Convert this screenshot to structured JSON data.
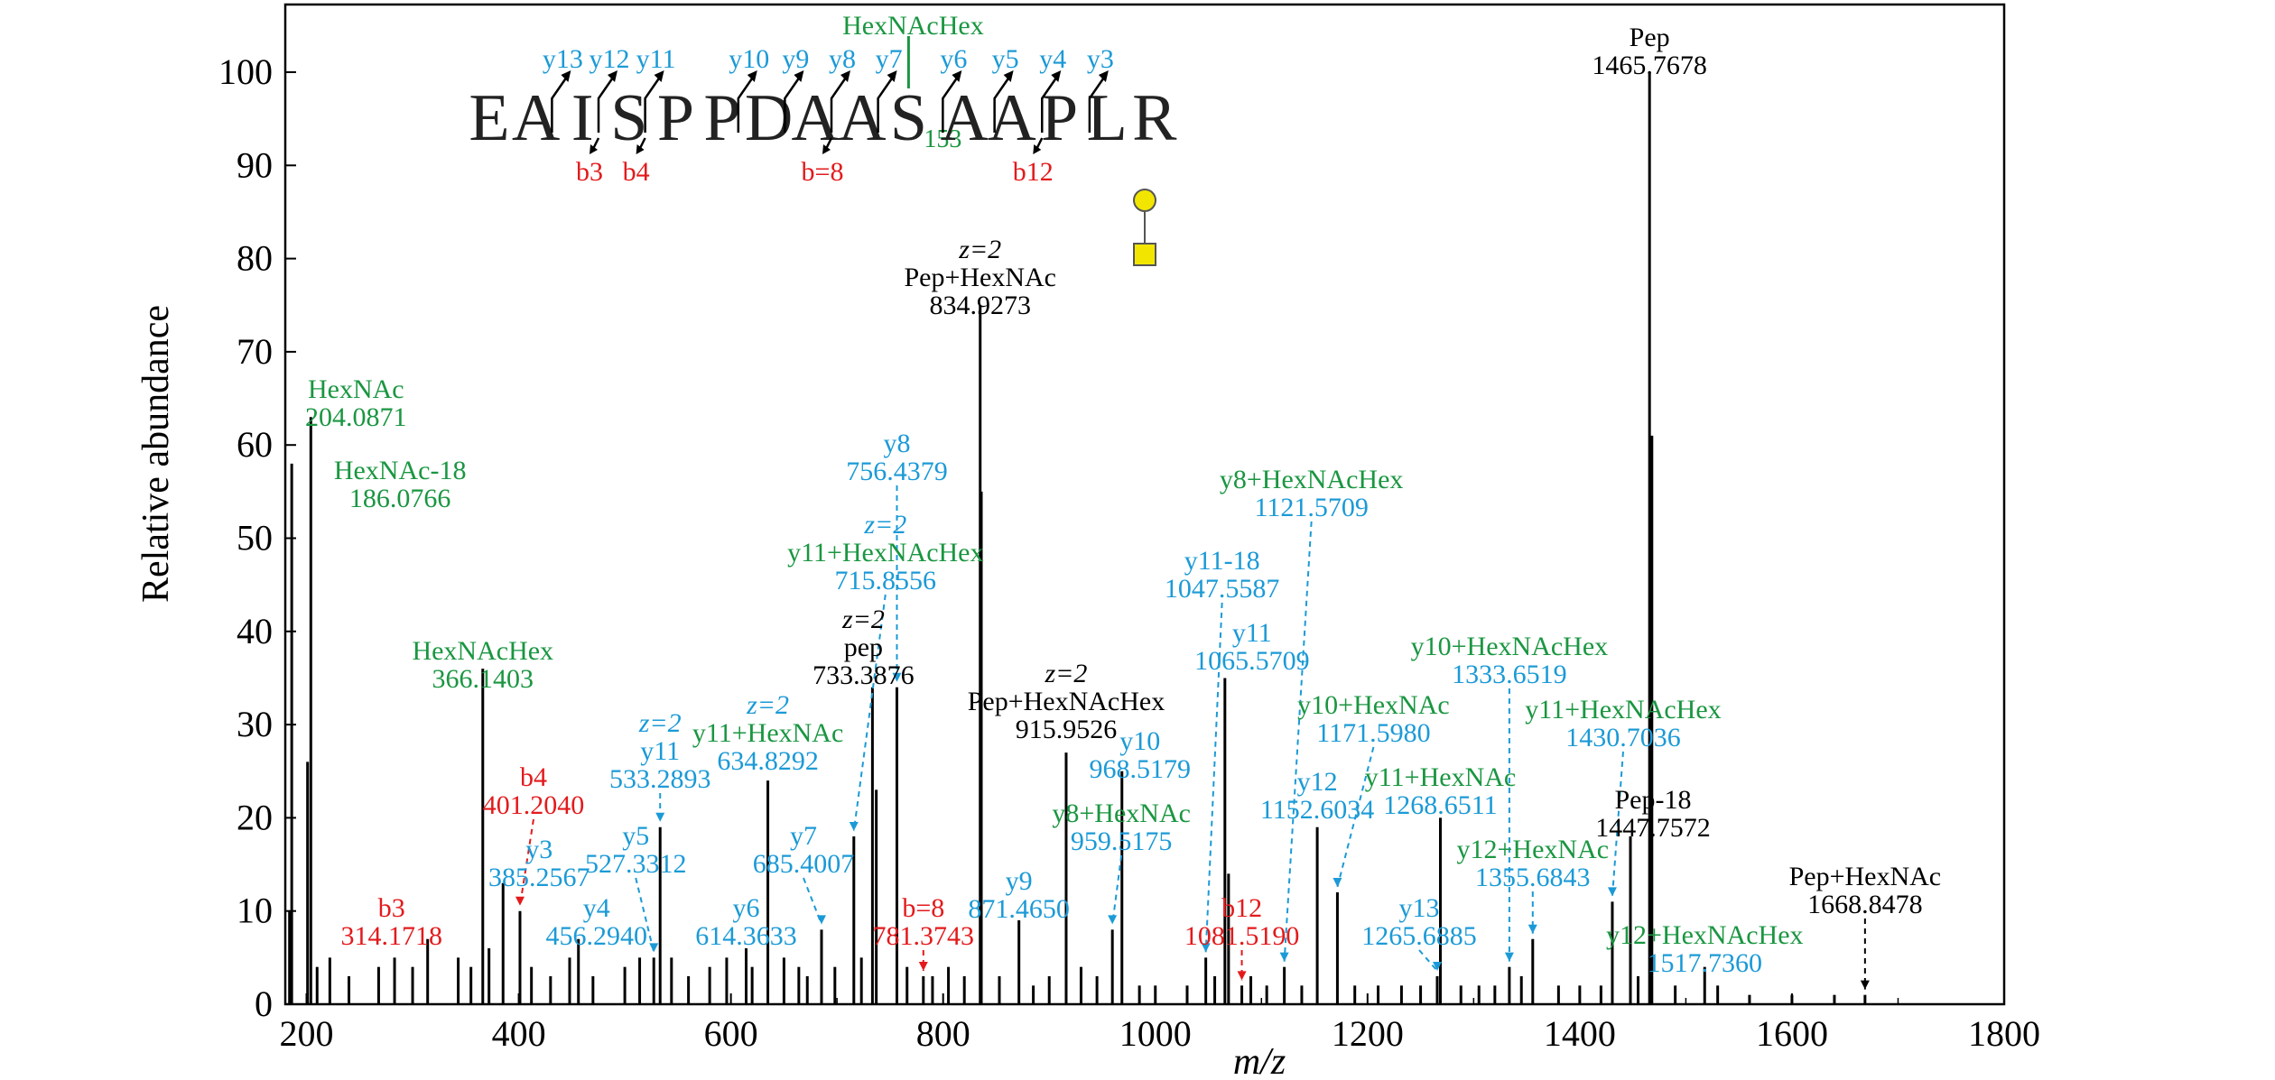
{
  "chart_data": {
    "type": "bar",
    "xlabel": "m/z",
    "ylabel": "Relative abundance",
    "xlim": [
      180,
      1800
    ],
    "ylim": [
      0,
      105
    ],
    "x_ticks": [
      200,
      400,
      600,
      800,
      1000,
      1200,
      1400,
      1600,
      1800
    ],
    "y_ticks": [
      0,
      10,
      20,
      30,
      40,
      50,
      60,
      70,
      80,
      90,
      100
    ],
    "colors": {
      "black": "#000000",
      "green": "#1a9641",
      "blue": "#1b9ad6",
      "red": "#e31a1c",
      "glycan": "#f2e600"
    },
    "peaks": [
      {
        "x": 186.0766,
        "y": 58
      },
      {
        "x": 204.0871,
        "y": 63
      },
      {
        "x": 201,
        "y": 26
      },
      {
        "x": 184,
        "y": 10
      },
      {
        "x": 366.1403,
        "y": 36
      },
      {
        "x": 385.2567,
        "y": 13
      },
      {
        "x": 401.204,
        "y": 10
      },
      {
        "x": 314.1718,
        "y": 7
      },
      {
        "x": 456.294,
        "y": 7
      },
      {
        "x": 527.3312,
        "y": 5
      },
      {
        "x": 533.2893,
        "y": 19
      },
      {
        "x": 614.3633,
        "y": 6
      },
      {
        "x": 634.8292,
        "y": 24
      },
      {
        "x": 685.4007,
        "y": 8
      },
      {
        "x": 715.8556,
        "y": 18
      },
      {
        "x": 733.3876,
        "y": 34
      },
      {
        "x": 737,
        "y": 23
      },
      {
        "x": 756.4379,
        "y": 34
      },
      {
        "x": 781.3743,
        "y": 3
      },
      {
        "x": 834.9273,
        "y": 75
      },
      {
        "x": 836,
        "y": 55
      },
      {
        "x": 871.465,
        "y": 9
      },
      {
        "x": 915.9526,
        "y": 27
      },
      {
        "x": 959.5175,
        "y": 8
      },
      {
        "x": 968.5179,
        "y": 25
      },
      {
        "x": 1047.5587,
        "y": 5
      },
      {
        "x": 1065.5709,
        "y": 35
      },
      {
        "x": 1069,
        "y": 14
      },
      {
        "x": 1081.519,
        "y": 2
      },
      {
        "x": 1121.5709,
        "y": 4
      },
      {
        "x": 1152.6034,
        "y": 19
      },
      {
        "x": 1171.598,
        "y": 12
      },
      {
        "x": 1265.6885,
        "y": 3
      },
      {
        "x": 1268.6511,
        "y": 20
      },
      {
        "x": 1333.6519,
        "y": 4
      },
      {
        "x": 1355.6843,
        "y": 7
      },
      {
        "x": 1430.7036,
        "y": 11
      },
      {
        "x": 1447.7572,
        "y": 18
      },
      {
        "x": 1465.7678,
        "y": 100
      },
      {
        "x": 1468,
        "y": 61
      },
      {
        "x": 1517.736,
        "y": 4
      },
      {
        "x": 1668.8478,
        "y": 1
      },
      {
        "x": 210,
        "y": 4
      },
      {
        "x": 222,
        "y": 5
      },
      {
        "x": 240,
        "y": 3
      },
      {
        "x": 268,
        "y": 4
      },
      {
        "x": 283,
        "y": 5
      },
      {
        "x": 300,
        "y": 4
      },
      {
        "x": 343,
        "y": 5
      },
      {
        "x": 355,
        "y": 4
      },
      {
        "x": 372,
        "y": 6
      },
      {
        "x": 412,
        "y": 4
      },
      {
        "x": 430,
        "y": 3
      },
      {
        "x": 448,
        "y": 5
      },
      {
        "x": 470,
        "y": 3
      },
      {
        "x": 500,
        "y": 4
      },
      {
        "x": 514,
        "y": 5
      },
      {
        "x": 544,
        "y": 5
      },
      {
        "x": 560,
        "y": 3
      },
      {
        "x": 580,
        "y": 4
      },
      {
        "x": 596,
        "y": 5
      },
      {
        "x": 620,
        "y": 4
      },
      {
        "x": 650,
        "y": 5
      },
      {
        "x": 664,
        "y": 4
      },
      {
        "x": 672,
        "y": 3
      },
      {
        "x": 698,
        "y": 4
      },
      {
        "x": 723,
        "y": 5
      },
      {
        "x": 766,
        "y": 4
      },
      {
        "x": 790,
        "y": 3
      },
      {
        "x": 805,
        "y": 4
      },
      {
        "x": 820,
        "y": 3
      },
      {
        "x": 853,
        "y": 3
      },
      {
        "x": 885,
        "y": 2
      },
      {
        "x": 900,
        "y": 3
      },
      {
        "x": 930,
        "y": 4
      },
      {
        "x": 945,
        "y": 3
      },
      {
        "x": 985,
        "y": 2
      },
      {
        "x": 1000,
        "y": 2
      },
      {
        "x": 1030,
        "y": 2
      },
      {
        "x": 1056,
        "y": 3
      },
      {
        "x": 1090,
        "y": 3
      },
      {
        "x": 1105,
        "y": 2
      },
      {
        "x": 1138,
        "y": 2
      },
      {
        "x": 1188,
        "y": 2
      },
      {
        "x": 1210,
        "y": 2
      },
      {
        "x": 1232,
        "y": 2
      },
      {
        "x": 1250,
        "y": 2
      },
      {
        "x": 1288,
        "y": 2
      },
      {
        "x": 1305,
        "y": 2
      },
      {
        "x": 1320,
        "y": 2
      },
      {
        "x": 1345,
        "y": 3
      },
      {
        "x": 1380,
        "y": 2
      },
      {
        "x": 1400,
        "y": 2
      },
      {
        "x": 1420,
        "y": 2
      },
      {
        "x": 1455,
        "y": 3
      },
      {
        "x": 1490,
        "y": 2
      },
      {
        "x": 1530,
        "y": 2
      },
      {
        "x": 1560,
        "y": 1
      },
      {
        "x": 1600,
        "y": 1
      },
      {
        "x": 1640,
        "y": 1
      }
    ],
    "annotations": [
      {
        "x": 204.0871,
        "y": 63,
        "lines": [
          {
            "t": "HexNAc",
            "c": "green"
          },
          {
            "t": "204.0871",
            "c": "green"
          }
        ]
      },
      {
        "x": 186.0766,
        "y": 58,
        "lines": [
          {
            "t": "HexNAc-18",
            "c": "green"
          },
          {
            "t": "186.0766",
            "c": "green"
          }
        ]
      },
      {
        "x": 366.1403,
        "y": 36,
        "lines": [
          {
            "t": "HexNAcHex",
            "c": "green"
          },
          {
            "t": "366.1403",
            "c": "green"
          }
        ]
      },
      {
        "x": 401.204,
        "y": 10,
        "lines": [
          {
            "t": "b4",
            "c": "red"
          },
          {
            "t": "401.2040",
            "c": "red"
          }
        ]
      },
      {
        "x": 385.2567,
        "y": 13,
        "lines": [
          {
            "t": "y3",
            "c": "blue"
          },
          {
            "t": "385.2567",
            "c": "blue"
          }
        ]
      },
      {
        "x": 314.1718,
        "y": 7,
        "lines": [
          {
            "t": "b3",
            "c": "red"
          },
          {
            "t": "314.1718",
            "c": "red"
          }
        ]
      },
      {
        "x": 456.294,
        "y": 7,
        "lines": [
          {
            "t": "y4",
            "c": "blue"
          },
          {
            "t": "456.2940",
            "c": "blue"
          }
        ]
      },
      {
        "x": 527.3312,
        "y": 5,
        "lines": [
          {
            "t": "y5",
            "c": "blue"
          },
          {
            "t": "527.3312",
            "c": "blue"
          }
        ]
      },
      {
        "x": 533.2893,
        "y": 19,
        "lines": [
          {
            "t": "z=2",
            "c": "blue"
          },
          {
            "t": "y11",
            "c": "blue"
          },
          {
            "t": "533.2893",
            "c": "blue"
          }
        ]
      },
      {
        "x": 614.3633,
        "y": 6,
        "lines": [
          {
            "t": "y6",
            "c": "blue"
          },
          {
            "t": "614.3633",
            "c": "blue"
          }
        ]
      },
      {
        "x": 634.8292,
        "y": 24,
        "lines": [
          {
            "t": "z=2",
            "c": "blue"
          },
          {
            "t": "y11+HexNAc",
            "c": "green"
          },
          {
            "t": "634.8292",
            "c": "blue"
          }
        ]
      },
      {
        "x": 685.4007,
        "y": 8,
        "lines": [
          {
            "t": "y7",
            "c": "blue"
          },
          {
            "t": "685.4007",
            "c": "blue"
          }
        ]
      },
      {
        "x": 715.8556,
        "y": 18,
        "lines": [
          {
            "t": "z=2",
            "c": "blue"
          },
          {
            "t": "y11+HexNAcHex",
            "c": "green"
          },
          {
            "t": "715.8556",
            "c": "blue"
          }
        ]
      },
      {
        "x": 733.3876,
        "y": 34,
        "lines": [
          {
            "t": "z=2",
            "c": "black"
          },
          {
            "t": "pep",
            "c": "black"
          },
          {
            "t": "733.3876",
            "c": "black"
          }
        ]
      },
      {
        "x": 756.4379,
        "y": 34,
        "lines": [
          {
            "t": "y8",
            "c": "blue"
          },
          {
            "t": "756.4379",
            "c": "blue"
          }
        ]
      },
      {
        "x": 781.3743,
        "y": 3,
        "lines": [
          {
            "t": "b=8",
            "c": "red"
          },
          {
            "t": "781.3743",
            "c": "red"
          }
        ]
      },
      {
        "x": 834.9273,
        "y": 75,
        "lines": [
          {
            "t": "z=2",
            "c": "black"
          },
          {
            "t": "Pep+HexNAc",
            "c": "black"
          },
          {
            "t": "834.9273",
            "c": "black"
          }
        ]
      },
      {
        "x": 871.465,
        "y": 9,
        "lines": [
          {
            "t": "y9",
            "c": "blue"
          },
          {
            "t": "871.4650",
            "c": "blue"
          }
        ]
      },
      {
        "x": 915.9526,
        "y": 27,
        "lines": [
          {
            "t": "z=2",
            "c": "black"
          },
          {
            "t": "Pep+HexNAcHex",
            "c": "black"
          },
          {
            "t": "915.9526",
            "c": "black"
          }
        ]
      },
      {
        "x": 959.5175,
        "y": 8,
        "lines": [
          {
            "t": "y8+HexNAc",
            "c": "green"
          },
          {
            "t": "959.5175",
            "c": "blue"
          }
        ]
      },
      {
        "x": 968.5179,
        "y": 25,
        "lines": [
          {
            "t": "y10",
            "c": "blue"
          },
          {
            "t": "968.5179",
            "c": "blue"
          }
        ]
      },
      {
        "x": 1047.5587,
        "y": 5,
        "lines": [
          {
            "t": "y11-18",
            "c": "blue"
          },
          {
            "t": "1047.5587",
            "c": "blue"
          }
        ]
      },
      {
        "x": 1065.5709,
        "y": 35,
        "lines": [
          {
            "t": "y11",
            "c": "blue"
          },
          {
            "t": "1065.5709",
            "c": "blue"
          }
        ]
      },
      {
        "x": 1081.519,
        "y": 2,
        "lines": [
          {
            "t": "b12",
            "c": "red"
          },
          {
            "t": "1081.5190",
            "c": "red"
          }
        ]
      },
      {
        "x": 1121.5709,
        "y": 4,
        "lines": [
          {
            "t": "y8+HexNAcHex",
            "c": "green"
          },
          {
            "t": "1121.5709",
            "c": "blue"
          }
        ]
      },
      {
        "x": 1152.6034,
        "y": 19,
        "lines": [
          {
            "t": "y12",
            "c": "blue"
          },
          {
            "t": "1152.6034",
            "c": "blue"
          }
        ]
      },
      {
        "x": 1171.598,
        "y": 12,
        "lines": [
          {
            "t": "y10+HexNAc",
            "c": "green"
          },
          {
            "t": "1171.5980",
            "c": "blue"
          }
        ]
      },
      {
        "x": 1265.6885,
        "y": 3,
        "lines": [
          {
            "t": "y13",
            "c": "blue"
          },
          {
            "t": "1265.6885",
            "c": "blue"
          }
        ]
      },
      {
        "x": 1268.6511,
        "y": 20,
        "lines": [
          {
            "t": "y11+HexNAc",
            "c": "green"
          },
          {
            "t": "1268.6511",
            "c": "blue"
          }
        ]
      },
      {
        "x": 1333.6519,
        "y": 4,
        "lines": [
          {
            "t": "y10+HexNAcHex",
            "c": "green"
          },
          {
            "t": "1333.6519",
            "c": "blue"
          }
        ]
      },
      {
        "x": 1355.6843,
        "y": 7,
        "lines": [
          {
            "t": "y12+HexNAc",
            "c": "green"
          },
          {
            "t": "1355.6843",
            "c": "blue"
          }
        ]
      },
      {
        "x": 1430.7036,
        "y": 11,
        "lines": [
          {
            "t": "y11+HexNAcHex",
            "c": "green"
          },
          {
            "t": "1430.7036",
            "c": "blue"
          }
        ]
      },
      {
        "x": 1447.7572,
        "y": 18,
        "lines": [
          {
            "t": "Pep-18",
            "c": "black"
          },
          {
            "t": "1447.7572",
            "c": "black"
          }
        ]
      },
      {
        "x": 1465.7678,
        "y": 100,
        "lines": [
          {
            "t": "Pep",
            "c": "black"
          },
          {
            "t": "1465.7678",
            "c": "black"
          }
        ]
      },
      {
        "x": 1517.736,
        "y": 4,
        "lines": [
          {
            "t": "y12+HexNAcHex",
            "c": "green"
          },
          {
            "t": "1517.7360",
            "c": "blue"
          }
        ]
      },
      {
        "x": 1668.8478,
        "y": 1,
        "lines": [
          {
            "t": "Pep+HexNAc",
            "c": "black"
          },
          {
            "t": "1668.8478",
            "c": "black"
          }
        ]
      }
    ],
    "sequence": {
      "residues": [
        "E",
        "A",
        "I",
        "S",
        "P",
        "P",
        "D",
        "A",
        "A",
        "S",
        "A",
        "A",
        "P",
        "L",
        "R"
      ],
      "modified_index": 9,
      "modified_subscript": "153",
      "modification_label": "HexNAcHex",
      "y_ions": [
        "y13",
        "y12",
        "y11",
        "y10",
        "y9",
        "y8",
        "y7",
        "y6",
        "y5",
        "y4",
        "y3"
      ],
      "b_ions": [
        "b3",
        "b4",
        "b=8",
        "b12"
      ]
    }
  }
}
